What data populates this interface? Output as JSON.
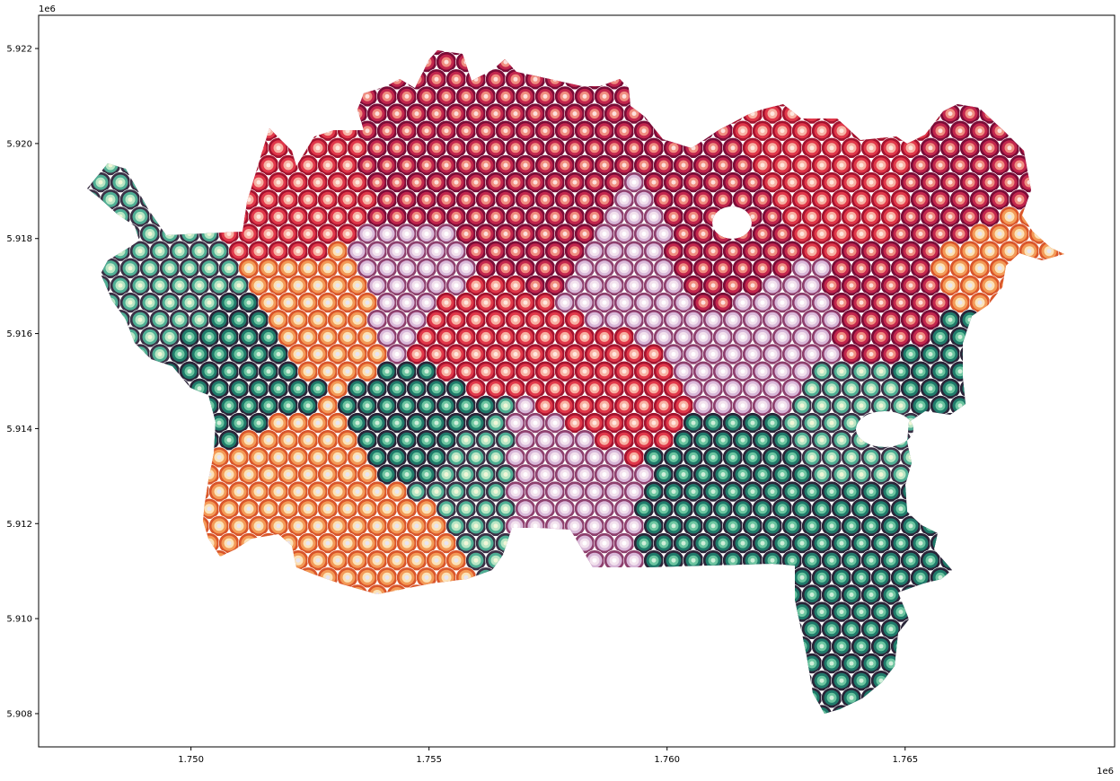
{
  "chart_data": {
    "type": "map",
    "title": "",
    "xlabel": "",
    "ylabel": "",
    "x_offset_label": "1e6",
    "y_offset_label": "1e6",
    "xlim": [
      1.7468,
      1.7694
    ],
    "ylim": [
      5.9073,
      5.9227
    ],
    "x_ticks": [
      {
        "value": 1.75,
        "label": "1.750"
      },
      {
        "value": 1.755,
        "label": "1.755"
      },
      {
        "value": 1.76,
        "label": "1.760"
      },
      {
        "value": 1.765,
        "label": "1.765"
      }
    ],
    "y_ticks": [
      {
        "value": 5.908,
        "label": "5.908"
      },
      {
        "value": 5.91,
        "label": "5.910"
      },
      {
        "value": 5.912,
        "label": "5.912"
      },
      {
        "value": 5.914,
        "label": "5.914"
      },
      {
        "value": 5.916,
        "label": "5.916"
      },
      {
        "value": 5.918,
        "label": "5.918"
      },
      {
        "value": 5.92,
        "label": "5.920"
      },
      {
        "value": 5.922,
        "label": "5.922"
      }
    ],
    "grid": false,
    "legend": "none",
    "marker": "concentric rings",
    "palette": {
      "dark_green": [
        "#2a2438",
        "#1f7a6a",
        "#6cc5a0",
        "#cfeed9"
      ],
      "light_green": [
        "#3a3045",
        "#4fae94",
        "#b9e6c4",
        "#f2f7d8"
      ],
      "orange": [
        "#d9552a",
        "#f39a57",
        "#fbe2b8",
        "#e8e5f2"
      ],
      "red": [
        "#a3122e",
        "#e0384a",
        "#f7b2a3",
        "#ffe8df"
      ],
      "crimson": [
        "#7a0c37",
        "#c2264d",
        "#f08e80",
        "#fde1dc"
      ],
      "lavender": [
        "#8e3f6d",
        "#d8b8d8",
        "#f3e3ee",
        "#ffffff"
      ]
    },
    "zones": [
      {
        "x": 1.749,
        "y": 5.917,
        "palette": "light_green"
      },
      {
        "x": 1.751,
        "y": 5.915,
        "palette": "dark_green"
      },
      {
        "x": 1.752,
        "y": 5.913,
        "palette": "orange"
      },
      {
        "x": 1.7525,
        "y": 5.9115,
        "palette": "orange"
      },
      {
        "x": 1.754,
        "y": 5.9115,
        "palette": "orange"
      },
      {
        "x": 1.755,
        "y": 5.914,
        "palette": "dark_green"
      },
      {
        "x": 1.756,
        "y": 5.913,
        "palette": "light_green"
      },
      {
        "x": 1.753,
        "y": 5.9165,
        "palette": "orange"
      },
      {
        "x": 1.7525,
        "y": 5.919,
        "palette": "red"
      },
      {
        "x": 1.755,
        "y": 5.9195,
        "palette": "crimson"
      },
      {
        "x": 1.7545,
        "y": 5.917,
        "palette": "lavender"
      },
      {
        "x": 1.757,
        "y": 5.9185,
        "palette": "crimson"
      },
      {
        "x": 1.756,
        "y": 5.916,
        "palette": "red"
      },
      {
        "x": 1.7585,
        "y": 5.915,
        "palette": "red"
      },
      {
        "x": 1.7595,
        "y": 5.917,
        "palette": "lavender"
      },
      {
        "x": 1.761,
        "y": 5.9175,
        "palette": "crimson"
      },
      {
        "x": 1.762,
        "y": 5.916,
        "palette": "lavender"
      },
      {
        "x": 1.764,
        "y": 5.9195,
        "palette": "red"
      },
      {
        "x": 1.766,
        "y": 5.9185,
        "palette": "crimson"
      },
      {
        "x": 1.765,
        "y": 5.9165,
        "palette": "crimson"
      },
      {
        "x": 1.766,
        "y": 5.9155,
        "palette": "dark_green"
      },
      {
        "x": 1.764,
        "y": 5.914,
        "palette": "light_green"
      },
      {
        "x": 1.7615,
        "y": 5.9125,
        "palette": "dark_green"
      },
      {
        "x": 1.764,
        "y": 5.9115,
        "palette": "dark_green"
      },
      {
        "x": 1.7645,
        "y": 5.9095,
        "palette": "dark_green"
      },
      {
        "x": 1.7575,
        "y": 5.913,
        "palette": "lavender"
      },
      {
        "x": 1.7665,
        "y": 5.9175,
        "palette": "orange"
      }
    ]
  }
}
